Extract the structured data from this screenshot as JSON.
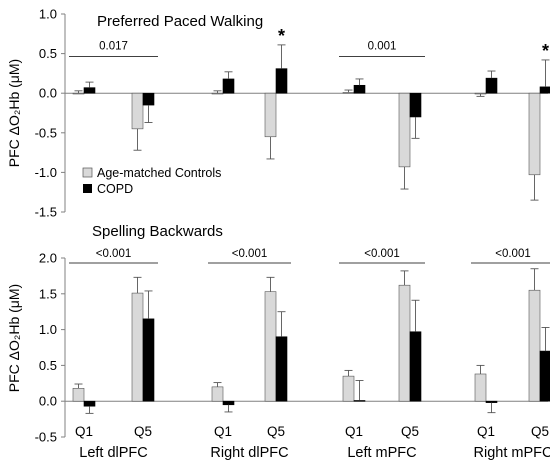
{
  "colors": {
    "controls": "#d9d9d9",
    "copd": "#000000",
    "axis": "#808080",
    "bar_stroke": "#555555"
  },
  "chart_data": [
    {
      "type": "bar",
      "title": "Preferred Paced Walking",
      "ylabel": "PFC ΔO₂Hb (μM)",
      "ylim": [
        -1.5,
        1.0
      ],
      "yticks": [
        1.0,
        0.5,
        0.0,
        -0.5,
        -1.0,
        -1.5
      ],
      "ytick_labels": [
        "1.0",
        "0.5",
        "0.0",
        "-0.5",
        "-1.0",
        "-1.5"
      ],
      "legend": [
        "Age-matched Controls",
        "COPD"
      ],
      "legend_position": "lower-left",
      "groups": [
        {
          "region": "Left dlPFC",
          "quintiles": [
            {
              "q": "Q1",
              "controls": 0.0,
              "controls_err": 0.03,
              "copd": 0.07,
              "copd_err": 0.07
            },
            {
              "q": "Q5",
              "controls": -0.45,
              "controls_err": 0.27,
              "copd": -0.15,
              "copd_err": 0.22
            }
          ],
          "significance": "0.017",
          "star": ""
        },
        {
          "region": "Right dlPFC",
          "quintiles": [
            {
              "q": "Q1",
              "controls": 0.0,
              "controls_err": 0.03,
              "copd": 0.18,
              "copd_err": 0.09
            },
            {
              "q": "Q5",
              "controls": -0.55,
              "controls_err": 0.28,
              "copd": 0.31,
              "copd_err": 0.3
            }
          ],
          "significance": "",
          "star": "*"
        },
        {
          "region": "Left mPFC",
          "quintiles": [
            {
              "q": "Q1",
              "controls": 0.01,
              "controls_err": 0.03,
              "copd": 0.1,
              "copd_err": 0.08
            },
            {
              "q": "Q5",
              "controls": -0.93,
              "controls_err": 0.28,
              "copd": -0.3,
              "copd_err": 0.27
            }
          ],
          "significance": "0.001",
          "star": ""
        },
        {
          "region": "Right mPFC",
          "quintiles": [
            {
              "q": "Q1",
              "controls": -0.01,
              "controls_err": 0.03,
              "copd": 0.19,
              "copd_err": 0.09
            },
            {
              "q": "Q5",
              "controls": -1.03,
              "controls_err": 0.32,
              "copd": 0.08,
              "copd_err": 0.34
            }
          ],
          "significance": "",
          "star": "*"
        }
      ]
    },
    {
      "type": "bar",
      "title": "Spelling Backwards",
      "ylabel": "PFC ΔO₂Hb (μM)",
      "ylim": [
        -0.5,
        2.0
      ],
      "yticks": [
        2.0,
        1.5,
        1.0,
        0.5,
        0.0,
        -0.5
      ],
      "ytick_labels": [
        "2.0",
        "1.5",
        "1.0",
        "0.5",
        "0.0",
        "-0.5"
      ],
      "groups": [
        {
          "region": "Left dlPFC",
          "quintiles": [
            {
              "q": "Q1",
              "controls": 0.18,
              "controls_err": 0.06,
              "copd": -0.07,
              "copd_err": 0.1
            },
            {
              "q": "Q5",
              "controls": 1.51,
              "controls_err": 0.22,
              "copd": 1.15,
              "copd_err": 0.39
            }
          ],
          "significance": "<0.001"
        },
        {
          "region": "Right dlPFC",
          "quintiles": [
            {
              "q": "Q1",
              "controls": 0.2,
              "controls_err": 0.06,
              "copd": -0.05,
              "copd_err": 0.1
            },
            {
              "q": "Q5",
              "controls": 1.53,
              "controls_err": 0.2,
              "copd": 0.9,
              "copd_err": 0.35
            }
          ],
          "significance": "<0.001"
        },
        {
          "region": "Left mPFC",
          "quintiles": [
            {
              "q": "Q1",
              "controls": 0.35,
              "controls_err": 0.08,
              "copd": 0.01,
              "copd_err": 0.28
            },
            {
              "q": "Q5",
              "controls": 1.62,
              "controls_err": 0.2,
              "copd": 0.97,
              "copd_err": 0.44
            }
          ],
          "significance": "<0.001"
        },
        {
          "region": "Right mPFC",
          "quintiles": [
            {
              "q": "Q1",
              "controls": 0.38,
              "controls_err": 0.12,
              "copd": -0.02,
              "copd_err": 0.14
            },
            {
              "q": "Q5",
              "controls": 1.55,
              "controls_err": 0.3,
              "copd": 0.7,
              "copd_err": 0.33
            }
          ],
          "significance": "<0.001"
        }
      ],
      "x_quintile_labels": [
        "Q1",
        "Q5"
      ],
      "x_region_labels": [
        "Left dlPFC",
        "Right dlPFC",
        "Left mPFC",
        "Right mPFC"
      ]
    }
  ]
}
